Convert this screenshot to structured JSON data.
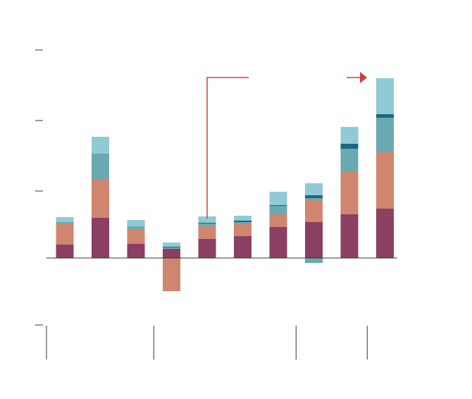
{
  "chart_data": {
    "type": "bar",
    "stacked": true,
    "title": "",
    "xlabel": "",
    "ylabel": "",
    "ylim": [
      -0.95,
      3.0
    ],
    "yticks": [
      -0.95,
      0,
      0.95,
      1.95,
      2.95
    ],
    "grid": false,
    "legend": "none",
    "bar_count": 10,
    "group_divider_positions": [
      2.5,
      6.5,
      8.5
    ],
    "series": [
      {
        "color": "#8b3f62",
        "values": [
          0.19,
          0.57,
          0.2,
          0.13,
          0.27,
          0.31,
          0.44,
          0.51,
          0.62,
          0.7
        ]
      },
      {
        "color": "#d0856e",
        "values": [
          0.3,
          0.55,
          0.21,
          -0.47,
          0.18,
          0.17,
          0.18,
          0.31,
          0.6,
          0.8
        ]
      },
      {
        "color": "#6aa9b1",
        "values": [
          0.02,
          0.36,
          0.04,
          0.02,
          0.04,
          0.03,
          0.12,
          0.03,
          0.33,
          0.49
        ]
      },
      {
        "color": "#1c6680",
        "values": [
          0.0,
          0.0,
          0.0,
          0.01,
          0.01,
          0.02,
          0.01,
          0.04,
          0.07,
          0.05
        ]
      },
      {
        "color": "#8fcad6",
        "values": [
          0.07,
          0.24,
          0.09,
          0.06,
          0.09,
          0.07,
          0.19,
          0.17,
          0.24,
          0.51
        ]
      },
      {
        "color": "#6aa9b1",
        "values": [
          0.0,
          0.0,
          0.0,
          0.0,
          0.0,
          0.0,
          0.0,
          -0.07,
          0.0,
          0.0
        ]
      }
    ],
    "annotation_colors": {
      "accent": "#d83b3b",
      "axis": "#333333"
    }
  }
}
